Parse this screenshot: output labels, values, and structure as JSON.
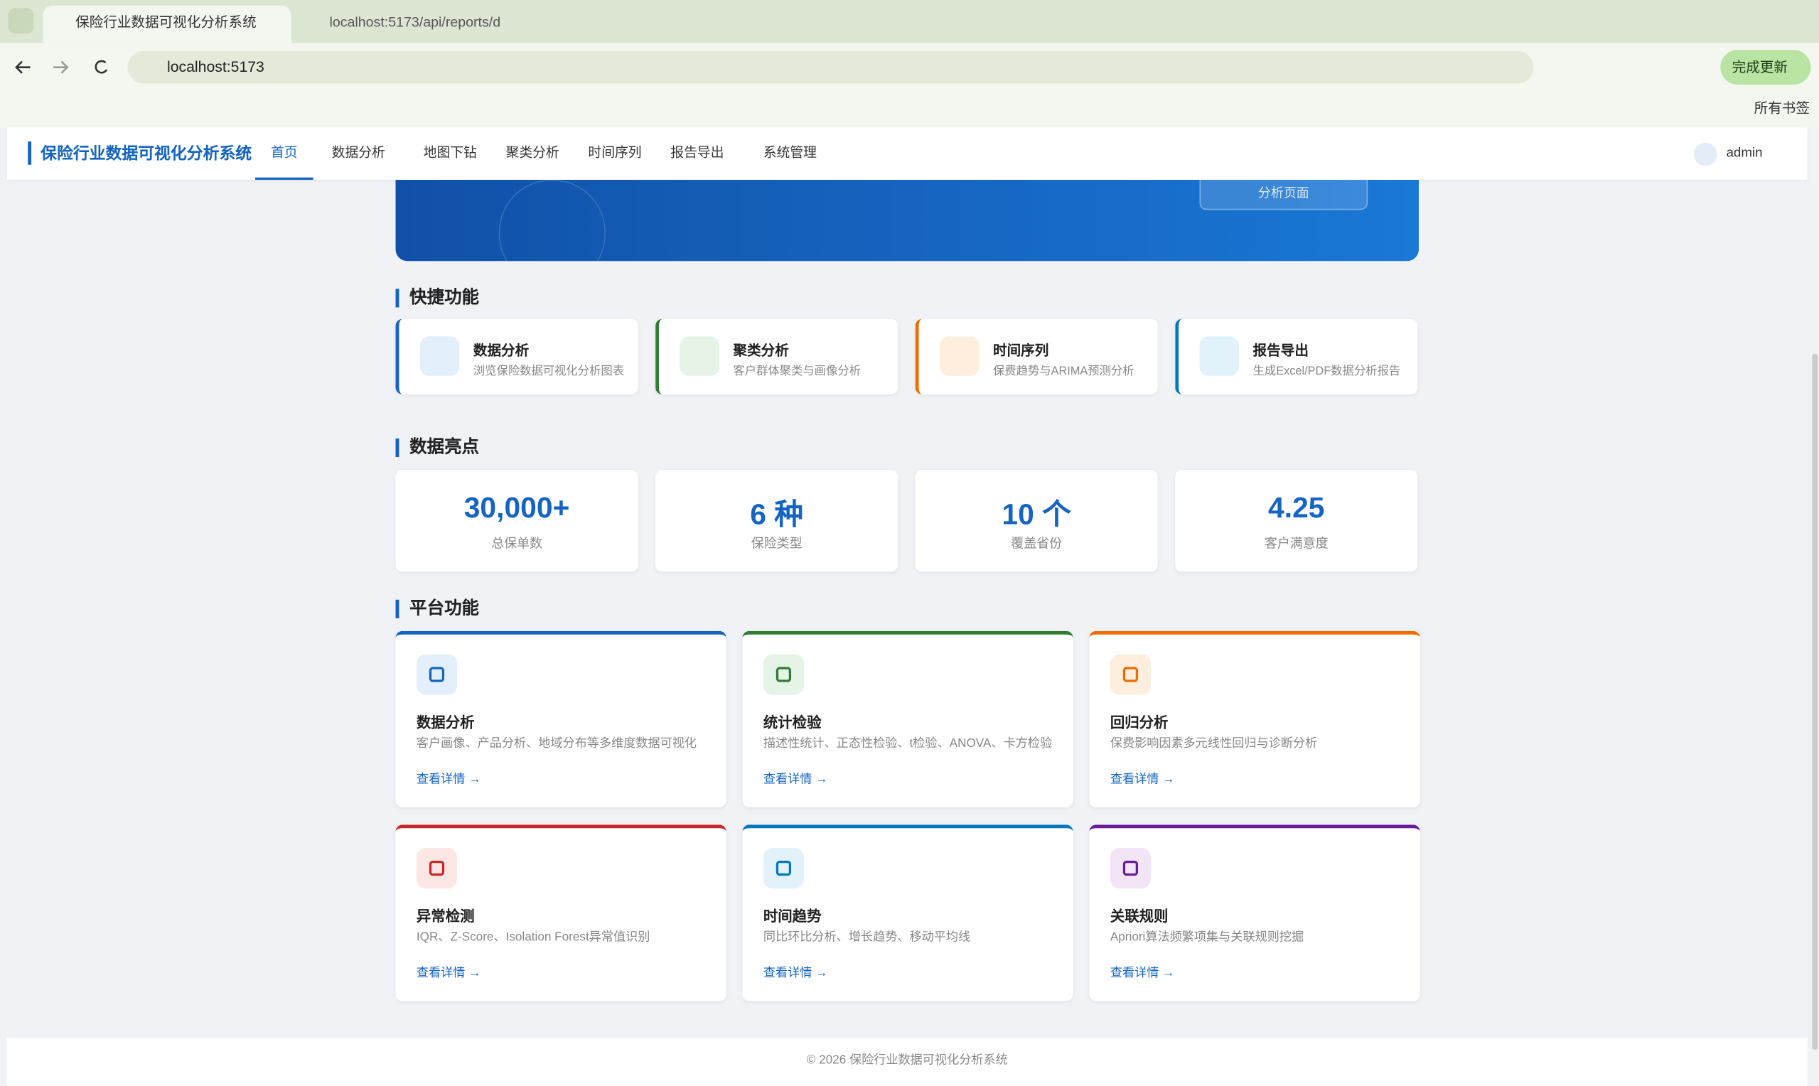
{
  "browser": {
    "tabs": [
      "保险行业数据可视化分析系统",
      "localhost:5173/api/reports/d"
    ],
    "url": "localhost:5173",
    "update_button": "完成更新",
    "bookmarks": "所有书签"
  },
  "nav": {
    "brand": "保险行业数据可视化分析系统",
    "items": [
      "首页",
      "数据分析",
      "地图下钻",
      "聚类分析",
      "时间序列",
      "报告导出",
      "系统管理"
    ],
    "user": "admin"
  },
  "hero": {
    "button": "分析页面"
  },
  "quick": {
    "title": "快捷功能",
    "items": [
      {
        "title": "数据分析",
        "desc": "浏览保险数据可视化分析图表"
      },
      {
        "title": "聚类分析",
        "desc": "客户群体聚类与画像分析"
      },
      {
        "title": "时间序列",
        "desc": "保费趋势与ARIMA预测分析"
      },
      {
        "title": "报告导出",
        "desc": "生成Excel/PDF数据分析报告"
      }
    ]
  },
  "highlights": {
    "title": "数据亮点",
    "items": [
      {
        "value": "30,000+",
        "label": "总保单数"
      },
      {
        "value": "6 种",
        "label": "保险类型"
      },
      {
        "value": "10 个",
        "label": "覆盖省份"
      },
      {
        "value": "4.25",
        "label": "客户满意度"
      }
    ]
  },
  "platform": {
    "title": "平台功能",
    "link": "查看详情",
    "items": [
      {
        "title": "数据分析",
        "desc": "客户画像、产品分析、地域分布等多维度数据可视化"
      },
      {
        "title": "统计检验",
        "desc": "描述性统计、正态性检验、t检验、ANOVA、卡方检验"
      },
      {
        "title": "回归分析",
        "desc": "保费影响因素多元线性回归与诊断分析"
      },
      {
        "title": "异常检测",
        "desc": "IQR、Z-Score、Isolation Forest异常值识别"
      },
      {
        "title": "时间趋势",
        "desc": "同比环比分析、增长趋势、移动平均线"
      },
      {
        "title": "关联规则",
        "desc": "Apriori算法频繁项集与关联规则挖掘"
      }
    ]
  },
  "footer": "© 2026 保险行业数据可视化分析系统"
}
